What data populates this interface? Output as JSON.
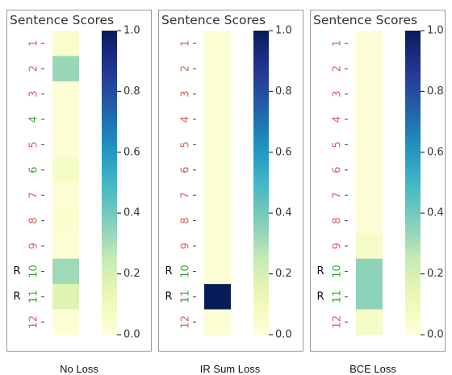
{
  "panel_title": "Sentence Scores",
  "colorbar_ticks": [
    "0.0",
    "0.2",
    "0.4",
    "0.6",
    "0.8",
    "1.0"
  ],
  "colors": {
    "sentence_label_red": "#d9615b",
    "sentence_label_green": "#3aa53a",
    "marker": "#111111"
  },
  "chart_data": [
    {
      "type": "heatmap",
      "title": "Sentence Scores",
      "caption": "No Loss",
      "categories": [
        "1",
        "2",
        "3",
        "4",
        "5",
        "6",
        "7",
        "8",
        "9",
        "10",
        "11",
        "12"
      ],
      "values": [
        0.04,
        0.33,
        0.01,
        0.01,
        0.01,
        0.06,
        0.01,
        0.03,
        0.01,
        0.32,
        0.17,
        0.01
      ],
      "relevant_markers": [
        "",
        "",
        "",
        "",
        "",
        "",
        "",
        "",
        "",
        "R",
        "R",
        ""
      ],
      "label_colors": [
        "red",
        "red",
        "red",
        "green",
        "red",
        "green",
        "red",
        "red",
        "red",
        "green",
        "green",
        "red"
      ],
      "colorbar": {
        "colormap": "YlGnBu",
        "range": [
          0.0,
          1.0
        ]
      }
    },
    {
      "type": "heatmap",
      "title": "Sentence Scores",
      "caption": "IR Sum Loss",
      "categories": [
        "1",
        "2",
        "3",
        "4",
        "5",
        "6",
        "7",
        "8",
        "9",
        "10",
        "11",
        "12"
      ],
      "values": [
        0.02,
        0.02,
        0.02,
        0.02,
        0.02,
        0.02,
        0.02,
        0.02,
        0.02,
        0.02,
        1.0,
        0.02
      ],
      "relevant_markers": [
        "",
        "",
        "",
        "",
        "",
        "",
        "",
        "",
        "",
        "R",
        "R",
        ""
      ],
      "label_colors": [
        "red",
        "red",
        "red",
        "red",
        "red",
        "red",
        "red",
        "red",
        "red",
        "green",
        "green",
        "red"
      ],
      "colorbar": {
        "colormap": "YlGnBu",
        "range": [
          0.0,
          1.0
        ]
      }
    },
    {
      "type": "heatmap",
      "title": "Sentence Scores",
      "caption": "BCE Loss",
      "categories": [
        "1",
        "2",
        "3",
        "4",
        "5",
        "6",
        "7",
        "8",
        "9",
        "10",
        "11",
        "12"
      ],
      "values": [
        0.01,
        0.01,
        0.01,
        0.01,
        0.01,
        0.01,
        0.01,
        0.01,
        0.06,
        0.35,
        0.35,
        0.06
      ],
      "relevant_markers": [
        "",
        "",
        "",
        "",
        "",
        "",
        "",
        "",
        "",
        "R",
        "R",
        ""
      ],
      "label_colors": [
        "red",
        "red",
        "red",
        "red",
        "red",
        "red",
        "red",
        "red",
        "red",
        "green",
        "green",
        "red"
      ],
      "colorbar": {
        "colormap": "YlGnBu",
        "range": [
          0.0,
          1.0
        ]
      }
    }
  ]
}
